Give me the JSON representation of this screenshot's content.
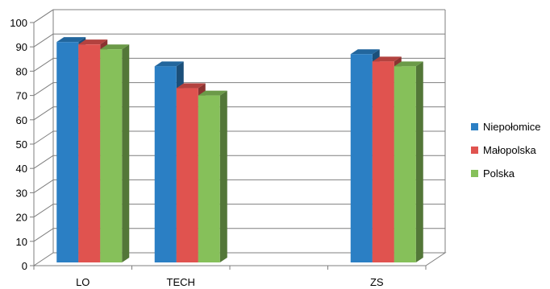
{
  "chart_data": {
    "type": "bar",
    "title": "",
    "xlabel": "",
    "ylabel": "",
    "categories": [
      "LO",
      "TECH",
      "",
      "ZS"
    ],
    "ylim": [
      0,
      100
    ],
    "yticks": [
      0,
      10,
      20,
      30,
      40,
      50,
      60,
      70,
      80,
      90,
      100
    ],
    "grid": true,
    "three_d": true,
    "legend_position": "right",
    "series": [
      {
        "name": "Niepołomice",
        "color": "#2b7fc4",
        "values": [
          92,
          82,
          null,
          87
        ]
      },
      {
        "name": "Małopolska",
        "color": "#e0534f",
        "values": [
          91,
          73,
          null,
          84
        ]
      },
      {
        "name": "Polska",
        "color": "#86c05a",
        "values": [
          89,
          70,
          null,
          82
        ]
      }
    ]
  }
}
